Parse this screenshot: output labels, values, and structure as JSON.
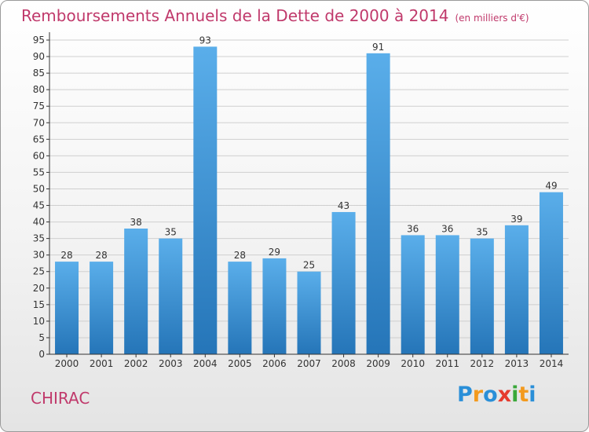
{
  "header": {
    "title": "Remboursements Annuels de la Dette de 2000 à 2014",
    "unit": "(en milliers d'€)"
  },
  "footer": {
    "commune": "CHIRAC",
    "brand": [
      "P",
      "r",
      "o",
      "x",
      "i",
      "t",
      "i"
    ],
    "brand_colors": [
      "#2a8fd8",
      "#f39a1e",
      "#2a8fd8",
      "#e63b2e",
      "#3aa83a",
      "#f39a1e",
      "#2a8fd8"
    ]
  },
  "colors": {
    "bar_light": "#5aaeea",
    "bar_dark": "#2575b8",
    "axis": "#333333",
    "grid": "#cfcfcf"
  },
  "chart_data": {
    "type": "bar",
    "title": "Remboursements Annuels de la Dette de 2000 à 2014",
    "subtitle": "(en milliers d'€)",
    "xlabel": "",
    "ylabel": "",
    "categories": [
      "2000",
      "2001",
      "2002",
      "2003",
      "2004",
      "2005",
      "2006",
      "2007",
      "2008",
      "2009",
      "2010",
      "2011",
      "2012",
      "2013",
      "2014"
    ],
    "values": [
      28,
      28,
      38,
      35,
      93,
      28,
      29,
      25,
      43,
      91,
      36,
      36,
      35,
      39,
      49
    ],
    "ylim": [
      0,
      95
    ],
    "yticks": [
      0,
      5,
      10,
      15,
      20,
      25,
      30,
      35,
      40,
      45,
      50,
      55,
      60,
      65,
      70,
      75,
      80,
      85,
      90,
      95
    ],
    "grid": true,
    "data_labels": true
  }
}
